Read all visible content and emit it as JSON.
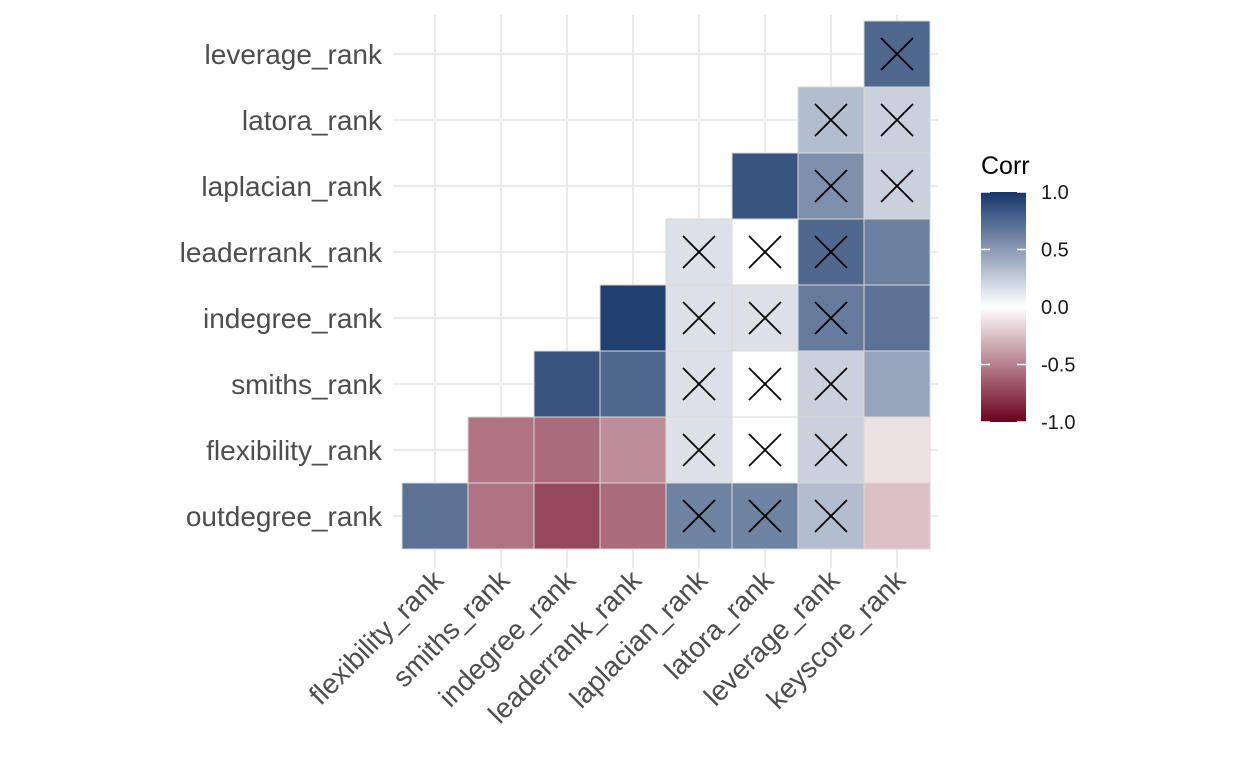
{
  "chart_data": {
    "type": "heatmap",
    "title": "",
    "xlabel": "",
    "ylabel": "",
    "x_categories": [
      "flexibility_rank",
      "smiths_rank",
      "indegree_rank",
      "leaderrank_rank",
      "laplacian_rank",
      "latora_rank",
      "leverage_rank",
      "keyscore_rank"
    ],
    "y_categories": [
      "outdegree_rank",
      "flexibility_rank",
      "smiths_rank",
      "indegree_rank",
      "leaderrank_rank",
      "laplacian_rank",
      "latora_rank",
      "leverage_rank"
    ],
    "values": [
      [
        0.7,
        -0.55,
        -0.72,
        -0.58,
        0.62,
        0.62,
        0.33,
        -0.25
      ],
      [
        null,
        -0.55,
        -0.58,
        -0.45,
        0.15,
        0.0,
        0.23,
        -0.12
      ],
      [
        null,
        null,
        0.85,
        0.75,
        0.15,
        0.0,
        0.23,
        0.45
      ],
      [
        null,
        null,
        null,
        0.95,
        0.15,
        0.15,
        0.65,
        0.7
      ],
      [
        null,
        null,
        null,
        null,
        0.15,
        0.0,
        0.75,
        0.63
      ],
      [
        null,
        null,
        null,
        null,
        null,
        0.85,
        0.55,
        0.23
      ],
      [
        null,
        null,
        null,
        null,
        null,
        null,
        0.33,
        0.23
      ],
      [
        null,
        null,
        null,
        null,
        null,
        null,
        null,
        0.75
      ]
    ],
    "insignificant": [
      [
        false,
        false,
        false,
        false,
        true,
        true,
        true,
        false
      ],
      [
        false,
        false,
        false,
        false,
        true,
        true,
        true,
        false
      ],
      [
        false,
        false,
        false,
        false,
        true,
        true,
        true,
        false
      ],
      [
        false,
        false,
        false,
        false,
        true,
        true,
        true,
        false
      ],
      [
        false,
        false,
        false,
        false,
        true,
        true,
        true,
        false
      ],
      [
        false,
        false,
        false,
        false,
        false,
        false,
        true,
        true
      ],
      [
        false,
        false,
        false,
        false,
        false,
        false,
        true,
        true
      ],
      [
        false,
        false,
        false,
        false,
        false,
        false,
        false,
        true
      ]
    ],
    "legend": {
      "title": "Corr",
      "ticks": [
        "1.0",
        "0.5",
        "0.0",
        "-0.5",
        "-1.0"
      ],
      "tick_values": [
        1.0,
        0.5,
        0.0,
        -0.5,
        -1.0
      ],
      "colors": {
        "low": "#6D011F",
        "mid": "#FFFFFF",
        "high": "#153668"
      },
      "placement": "right"
    },
    "grid": true
  }
}
